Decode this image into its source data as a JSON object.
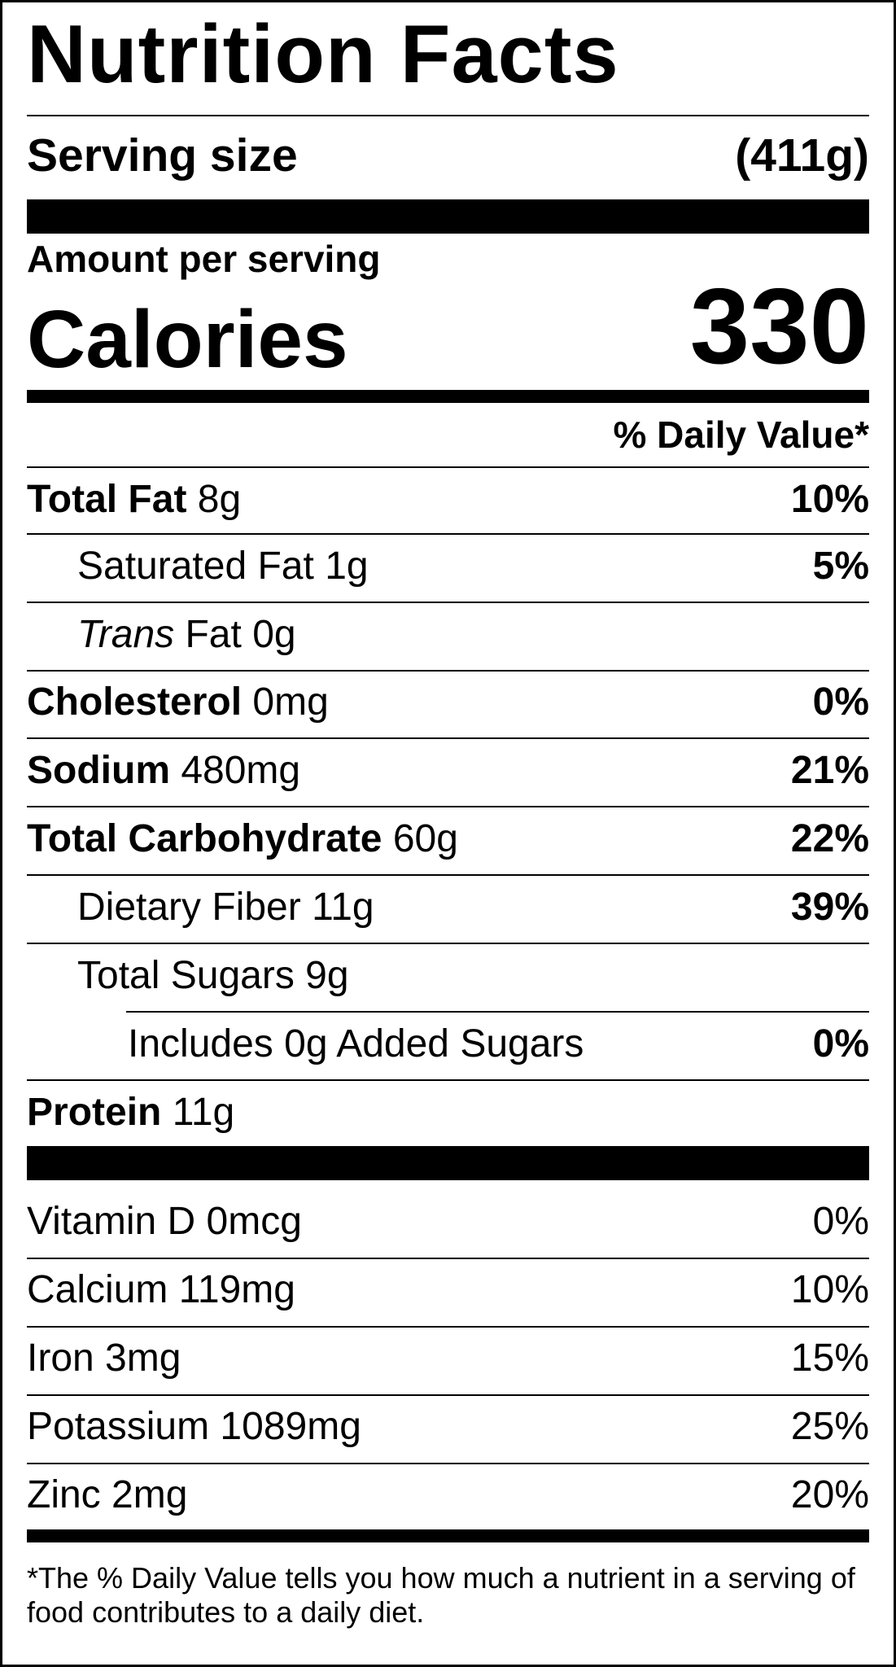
{
  "title": "Nutrition Facts",
  "serving": {
    "label": "Serving size",
    "value": "(411g)"
  },
  "amount_per_serving": "Amount per serving",
  "calories": {
    "label": "Calories",
    "value": "330"
  },
  "daily_value_header": "% Daily Value*",
  "nutrients": {
    "total_fat": {
      "name": "Total Fat",
      "amount": "8g",
      "dv": "10%"
    },
    "saturated_fat": {
      "name": "Saturated Fat",
      "amount": "1g",
      "dv": "5%"
    },
    "trans_fat": {
      "name_italic": "Trans",
      "name_rest": "Fat",
      "amount": "0g"
    },
    "cholesterol": {
      "name": "Cholesterol",
      "amount": "0mg",
      "dv": "0%"
    },
    "sodium": {
      "name": "Sodium",
      "amount": "480mg",
      "dv": "21%"
    },
    "total_carbohydrate": {
      "name": "Total Carbohydrate",
      "amount": "60g",
      "dv": "22%"
    },
    "dietary_fiber": {
      "name": "Dietary Fiber",
      "amount": "11g",
      "dv": "39%"
    },
    "total_sugars": {
      "name": "Total Sugars",
      "amount": "9g"
    },
    "added_sugars": {
      "text": "Includes 0g Added Sugars",
      "dv": "0%"
    },
    "protein": {
      "name": "Protein",
      "amount": "11g"
    }
  },
  "vitamins": [
    {
      "text": "Vitamin D 0mcg",
      "dv": "0%"
    },
    {
      "text": "Calcium 119mg",
      "dv": "10%"
    },
    {
      "text": "Iron 3mg",
      "dv": "15%"
    },
    {
      "text": "Potassium 1089mg",
      "dv": "25%"
    },
    {
      "text": "Zinc 2mg",
      "dv": "20%"
    }
  ],
  "footnote": "*The % Daily Value tells you how much a nutrient in a serving of food contributes to a daily diet."
}
